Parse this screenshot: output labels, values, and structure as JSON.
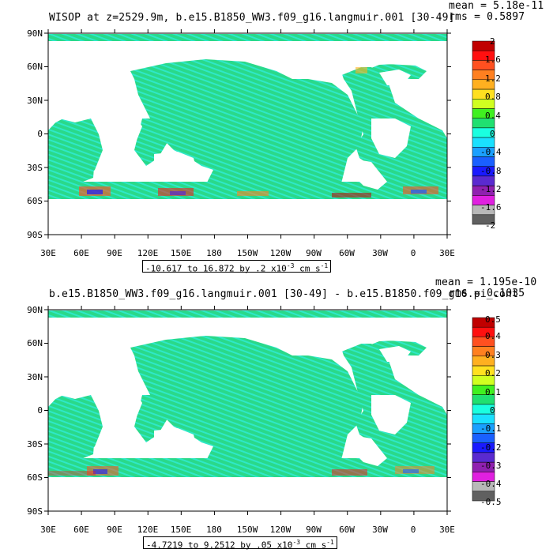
{
  "colors": {
    "land": "#ffffff",
    "ocean_main": "#2ad98a",
    "ocean_alt": "#2ee8c8",
    "palette": [
      "#606060",
      "#b8b8b8",
      "#e020e0",
      "#9020b0",
      "#5a2ad0",
      "#1a1aff",
      "#1a60ff",
      "#1aa0ff",
      "#1ae0ff",
      "#1affe0",
      "#20e070",
      "#40f020",
      "#d0ff20",
      "#ffe020",
      "#ffb020",
      "#ff8020",
      "#ff5020",
      "#ff1010",
      "#c00000"
    ]
  },
  "panels": [
    {
      "title": "WISOP at z=2529.9m, b.e15.B1850_WW3.f09_g16.langmuir.001 [30-49]",
      "mean_text": "mean = 5.18e-11",
      "rms_text": "rms = 0.5897",
      "range_text": "-10.617 to 16.872 by .2 x10",
      "range_exp": "-3",
      "range_units": " cm s",
      "range_units_exp": "-1",
      "ylabels": [
        "90N",
        "60N",
        "30N",
        "0",
        "30S",
        "60S",
        "90S"
      ],
      "xlabels": [
        "30E",
        "60E",
        "90E",
        "120E",
        "150E",
        "180",
        "150W",
        "120W",
        "90W",
        "60W",
        "30W",
        "0",
        "30E"
      ],
      "colorbar_labels": [
        "2",
        "1.6",
        "1.2",
        "0.8",
        "0.4",
        "0",
        "-0.4",
        "-0.8",
        "-1.2",
        "-1.6",
        "-2"
      ]
    },
    {
      "title": "b.e15.B1850_WW3.f09_g16.langmuir.001 [30-49] - b.e15.B1850.f09_g16.pi_cont",
      "mean_text": "mean = 1.195e-10",
      "rms_text": "rms = 0.1035",
      "range_text": "-4.7219 to 9.2512 by .05 x10",
      "range_exp": "-3",
      "range_units": " cm s",
      "range_units_exp": "-1",
      "ylabels": [
        "90N",
        "60N",
        "30N",
        "0",
        "30S",
        "60S",
        "90S"
      ],
      "xlabels": [
        "30E",
        "60E",
        "90E",
        "120E",
        "150E",
        "180",
        "150W",
        "120W",
        "90W",
        "60W",
        "30W",
        "0",
        "30E"
      ],
      "colorbar_labels": [
        "0.5",
        "0.4",
        "0.3",
        "0.2",
        "0.1",
        "0",
        "-0.1",
        "-0.2",
        "-0.3",
        "-0.4",
        "-0.5"
      ]
    }
  ]
}
